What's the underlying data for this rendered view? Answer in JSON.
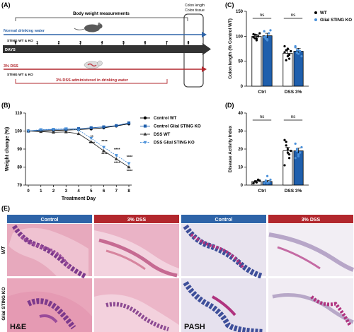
{
  "panels": {
    "a": {
      "label": "(A)",
      "top_bar": "Body weight measurements",
      "colon_note_1": "Colon length",
      "colon_note_2": "Colon tissue",
      "water_label": "Normal drinking water",
      "group_top": "STING WT & KO",
      "days_label": "DAYS",
      "days": [
        "0",
        "1",
        "2",
        "3",
        "4",
        "5",
        "6",
        "7",
        "8"
      ],
      "dss_label": "3% DSS",
      "group_bottom": "STING WT & KO",
      "dss_note": "3% DSS administered in drinking water"
    },
    "b": {
      "label": "(B)"
    },
    "c": {
      "label": "(C)"
    },
    "d": {
      "label": "(D)"
    },
    "e": {
      "label": "(E)",
      "headers": [
        "Control",
        "3% DSS",
        "Control",
        "3% DSS"
      ],
      "row_labels": [
        "WT",
        "Glial STING KO"
      ],
      "stain_labels": [
        "H&E",
        "PASH"
      ]
    }
  },
  "colors": {
    "control_blue": "#2e64a8",
    "dss_red": "#b2272d",
    "kdss_blue": "#2565b5",
    "he_pink": "#d98aa8",
    "he_purple": "#7d3a8c",
    "pash_magenta": "#b0337f",
    "pash_blue": "#3e4f9a"
  },
  "chart_data": [
    {
      "id": "B",
      "type": "line",
      "xlabel": "Treatment Day",
      "ylabel": "Weight change (%)",
      "x": [
        0,
        1,
        2,
        3,
        4,
        5,
        6,
        7,
        8
      ],
      "ylim": [
        70,
        110
      ],
      "yticks": [
        70,
        80,
        90,
        100,
        110
      ],
      "series": [
        {
          "name": "Control WT",
          "marker": "circle",
          "color": "#000000",
          "dash": false,
          "values": [
            100,
            100,
            100.3,
            100.5,
            100.8,
            101.2,
            101.8,
            102.8,
            104
          ]
        },
        {
          "name": "Control Glial STING KO",
          "marker": "square",
          "color": "#1f5fad",
          "dash": false,
          "values": [
            100,
            100.5,
            100.8,
            101,
            101.3,
            101.8,
            102.3,
            103,
            104.5
          ]
        },
        {
          "name": "DSS WT",
          "marker": "triangle-up",
          "color": "#333333",
          "dash": false,
          "values": [
            100,
            99.7,
            99.3,
            99.5,
            98.5,
            94,
            89,
            84.5,
            80
          ]
        },
        {
          "name": "DSS Glial STING KO",
          "marker": "triangle-down",
          "color": "#4a90d9",
          "dash": true,
          "values": [
            100,
            100.8,
            101,
            101.3,
            100.5,
            96,
            91,
            86.5,
            82
          ]
        }
      ],
      "annotations": [
        {
          "x": 5,
          "y": 96,
          "text": "**"
        },
        {
          "x": 5,
          "y": 92.5,
          "text": "****"
        },
        {
          "x": 6,
          "y": 93.5,
          "text": "****"
        },
        {
          "x": 6,
          "y": 86.5,
          "text": "****"
        },
        {
          "x": 7,
          "y": 89,
          "text": "****"
        },
        {
          "x": 7,
          "y": 81.5,
          "text": "****"
        },
        {
          "x": 8,
          "y": 85,
          "text": "****"
        },
        {
          "x": 8,
          "y": 77,
          "text": "****"
        }
      ],
      "legend_position": "right"
    },
    {
      "id": "C",
      "type": "bar",
      "ylabel": "Colon length (% Control WT)",
      "categories": [
        "Ctrl",
        "DSS 3%"
      ],
      "ylim": [
        0,
        150
      ],
      "yticks": [
        0,
        50,
        100,
        150
      ],
      "series": [
        {
          "name": "WT",
          "color": "#ffffff",
          "marker_color": "#000000",
          "values": [
            100,
            66
          ],
          "errors": [
            4,
            7
          ],
          "points": [
            [
              104,
              96,
              92,
              100,
              106,
              98,
              103,
              95
            ],
            [
              80,
              72,
              60,
              55,
              70,
              68,
              52,
              75,
              63
            ]
          ]
        },
        {
          "name": "Glial STING KO",
          "color": "#1f5fad",
          "marker_color": "#4a90d9",
          "values": [
            101,
            70
          ],
          "errors": [
            5,
            6
          ],
          "points": [
            [
              110,
              95,
              92,
              106,
              112,
              98,
              100,
              94
            ],
            [
              78,
              72,
              65,
              70,
              60,
              80,
              67,
              72
            ]
          ]
        }
      ],
      "annotations": [
        "ns",
        "ns"
      ],
      "legend_position": "top-right"
    },
    {
      "id": "D",
      "type": "bar",
      "ylabel": "Disease Activity Index",
      "categories": [
        "Ctrl",
        "DSS 3%"
      ],
      "ylim": [
        0,
        40
      ],
      "yticks": [
        0,
        10,
        20,
        30,
        40
      ],
      "series": [
        {
          "name": "WT",
          "color": "#ffffff",
          "marker_color": "#000000",
          "values": [
            2,
            19
          ],
          "errors": [
            0.5,
            2
          ],
          "points": [
            [
              1,
              2,
              1.5,
              3,
              2.5,
              1,
              2,
              1.5
            ],
            [
              25,
              22,
              18,
              15,
              19,
              11,
              24,
              20,
              17
            ]
          ]
        },
        {
          "name": "Glial STING KO",
          "color": "#1f5fad",
          "marker_color": "#4a90d9",
          "values": [
            2,
            19
          ],
          "errors": [
            0.5,
            1.5
          ],
          "points": [
            [
              1,
              2,
              5,
              1.5,
              3,
              1,
              2.5,
              1
            ],
            [
              23,
              20,
              16,
              18,
              21,
              15,
              19,
              17
            ]
          ]
        }
      ],
      "annotations": [
        "ns",
        "ns"
      ]
    }
  ]
}
